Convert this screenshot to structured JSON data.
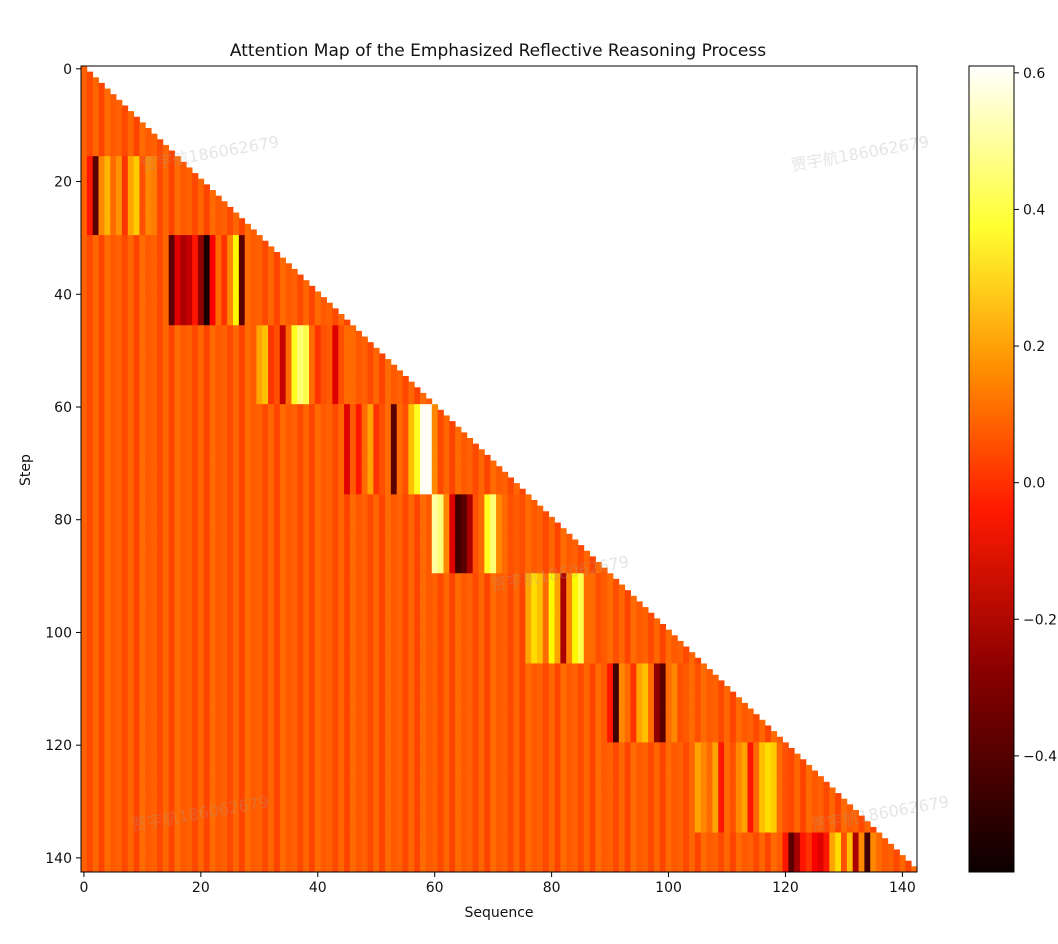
{
  "chart_data": {
    "type": "heatmap",
    "title": "Attention Map of the Emphasized Reflective Reasoning Process",
    "xlabel": "Sequence",
    "ylabel": "Step",
    "rows": 143,
    "cols": 143,
    "mask": "lower-triangular",
    "xlim": [
      0,
      142
    ],
    "ylim": [
      0,
      142
    ],
    "x_ticks": [
      0,
      20,
      40,
      60,
      80,
      100,
      120,
      140
    ],
    "y_ticks": [
      0,
      20,
      40,
      60,
      80,
      100,
      120,
      140
    ],
    "colormap": "hot",
    "colorbar": {
      "min": -0.57,
      "max": 0.61,
      "ticks": [
        {
          "value": 0.6,
          "label": "0.6"
        },
        {
          "value": 0.4,
          "label": "0.4"
        },
        {
          "value": 0.2,
          "label": "0.2"
        },
        {
          "value": 0.0,
          "label": "0.0"
        },
        {
          "value": -0.2,
          "label": "−0.2"
        },
        {
          "value": -0.4,
          "label": "−0.4"
        }
      ]
    },
    "background_value": 0.0,
    "background_column_values": [
      0.03,
      -0.01,
      0.04,
      -0.02,
      0.05,
      0.02
    ],
    "block_values_description": "Diagonal blocks of emphasized reflective steps; within each block columns carry the listed values, rows below the block revert to background.",
    "blocks": [
      {
        "rows": [
          16,
          29
        ],
        "cols": [
          1,
          12
        ],
        "values": [
          -0.1,
          -0.45,
          0.1,
          0.18,
          0.05,
          0.12,
          -0.05,
          0.15,
          0.22,
          0.0,
          0.1,
          0.08
        ]
      },
      {
        "rows": [
          30,
          45
        ],
        "cols": [
          15,
          28
        ],
        "values": [
          -0.45,
          -0.2,
          -0.3,
          -0.25,
          -0.1,
          -0.35,
          -0.57,
          -0.15,
          0.05,
          -0.05,
          0.1,
          0.3,
          -0.45,
          0.05
        ]
      },
      {
        "rows": [
          46,
          59
        ],
        "cols": [
          30,
          45
        ],
        "values": [
          0.15,
          0.2,
          -0.05,
          0.0,
          -0.25,
          0.05,
          0.35,
          0.45,
          0.4,
          0.05,
          -0.05,
          0.0,
          0.02,
          -0.2,
          0.0,
          0.05
        ]
      },
      {
        "rows": [
          60,
          75
        ],
        "cols": [
          45,
          60
        ],
        "values": [
          -0.2,
          0.02,
          -0.1,
          0.05,
          0.15,
          -0.05,
          0.0,
          0.05,
          -0.45,
          0.05,
          0.0,
          0.2,
          0.35,
          0.6,
          0.6,
          0.1
        ]
      },
      {
        "rows": [
          76,
          89
        ],
        "cols": [
          60,
          75
        ],
        "values": [
          0.5,
          0.45,
          0.1,
          -0.2,
          -0.5,
          -0.45,
          -0.3,
          0.0,
          0.05,
          0.35,
          0.45,
          0.1,
          0.05,
          0.0,
          0.02,
          0.0
        ]
      },
      {
        "rows": [
          90,
          105
        ],
        "cols": [
          76,
          91
        ],
        "values": [
          0.15,
          0.25,
          0.2,
          0.05,
          0.3,
          0.15,
          -0.3,
          0.1,
          0.3,
          0.4,
          0.05,
          0.05,
          0.0,
          0.02,
          0.05,
          0.0
        ]
      },
      {
        "rows": [
          106,
          119
        ],
        "cols": [
          90,
          105
        ],
        "values": [
          -0.1,
          -0.5,
          0.1,
          0.05,
          -0.05,
          0.15,
          0.2,
          0.05,
          -0.35,
          -0.45,
          0.05,
          0.1,
          0.0,
          0.02,
          0.05,
          0.0
        ]
      },
      {
        "rows": [
          120,
          135
        ],
        "cols": [
          105,
          120
        ],
        "values": [
          0.15,
          0.1,
          0.05,
          0.15,
          -0.1,
          0.05,
          0.0,
          0.1,
          0.15,
          -0.1,
          0.05,
          0.2,
          0.25,
          0.22,
          0.05,
          0.0
        ]
      },
      {
        "rows": [
          136,
          142
        ],
        "cols": [
          120,
          136
        ],
        "values": [
          -0.1,
          -0.45,
          -0.3,
          -0.1,
          -0.05,
          -0.15,
          -0.2,
          -0.1,
          0.15,
          0.25,
          0.0,
          0.2,
          -0.3,
          0.1,
          -0.5,
          0.1,
          0.05
        ]
      }
    ]
  },
  "watermark_text": "贾宇航186062679"
}
